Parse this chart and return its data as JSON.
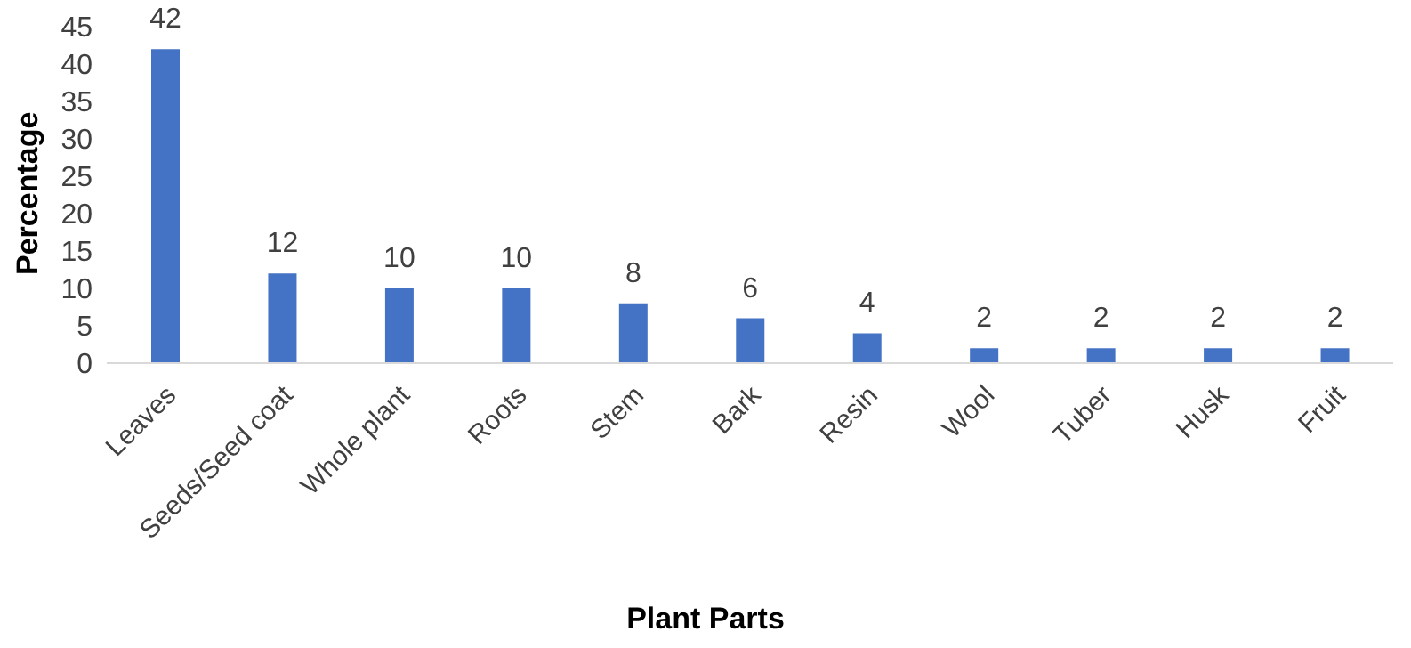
{
  "chart_data": {
    "type": "bar",
    "xlabel": "Plant Parts",
    "ylabel": "Percentage",
    "categories": [
      "Leaves",
      "Seeds/Seed coat",
      "Whole plant",
      "Roots",
      "Stem",
      "Bark",
      "Resin",
      "Wool",
      "Tuber",
      "Husk",
      "Fruit"
    ],
    "values": [
      42,
      12,
      10,
      10,
      8,
      6,
      4,
      2,
      2,
      2,
      2
    ],
    "color": "#4472c4",
    "ylim": [
      0,
      45
    ],
    "yticks": [
      0,
      5,
      10,
      15,
      20,
      25,
      30,
      35,
      40,
      45
    ],
    "data_labels": true,
    "grid": false,
    "legend": false
  }
}
